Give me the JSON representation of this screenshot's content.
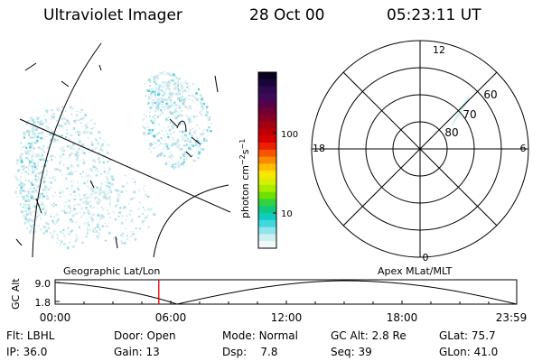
{
  "header": {
    "instrument": "Ultraviolet Imager",
    "date": "28 Oct 00",
    "time": "05:23:11 UT"
  },
  "geo_panel": {
    "label": "Geographic Lat/Lon"
  },
  "apex_panel": {
    "label": "Apex MLat/MLT"
  },
  "colorbar": {
    "unit_label": "photon cm",
    "unit_sup1": "−2",
    "unit_mid": "s",
    "unit_sup2": "−1",
    "tick_labels": [
      "100",
      "10"
    ],
    "colors": [
      "#0b0020",
      "#1a0538",
      "#2c0a50",
      "#3e0a58",
      "#55004a",
      "#6e0035",
      "#880022",
      "#a30012",
      "#be0006",
      "#d60000",
      "#ea2000",
      "#f55500",
      "#fb8a00",
      "#ffbd00",
      "#fae600",
      "#d8f000",
      "#a8ec00",
      "#70e000",
      "#30d440",
      "#10c880",
      "#10ccc0",
      "#40d8dc",
      "#90e4ea",
      "#cceff2",
      "#f0f8fa"
    ]
  },
  "polar_plot": {
    "mlt_labels": {
      "top": "12",
      "left": "18",
      "right": "6",
      "bottom": "0"
    },
    "lat_labels": [
      "60",
      "70",
      "80"
    ]
  },
  "altitude_plot": {
    "axis_label": "GC Alt",
    "y_ticks": [
      "9.0",
      "1.8"
    ],
    "x_ticks": [
      "00:00",
      "06:00",
      "12:00",
      "18:00",
      "23:59"
    ],
    "marker_time_hours": 5.39
  },
  "info": {
    "flt_label": "Flt:",
    "flt_value": "LBHL",
    "ip_label": "IP:",
    "ip_value": "36.0",
    "door_label": "Door:",
    "door_value": "Open",
    "gain_label": "Gain:",
    "gain_value": "13",
    "mode_label": "Mode:",
    "mode_value": "Normal",
    "dsp_label": "Dsp:",
    "dsp_value": "7.8",
    "gcalt_label": "GC Alt:",
    "gcalt_value": "2.8 Re",
    "seq_label": "Seq:",
    "seq_value": "39",
    "glat_label": "GLat:",
    "glat_value": "75.7",
    "glon_label": "GLon:",
    "glon_value": "41.0"
  }
}
